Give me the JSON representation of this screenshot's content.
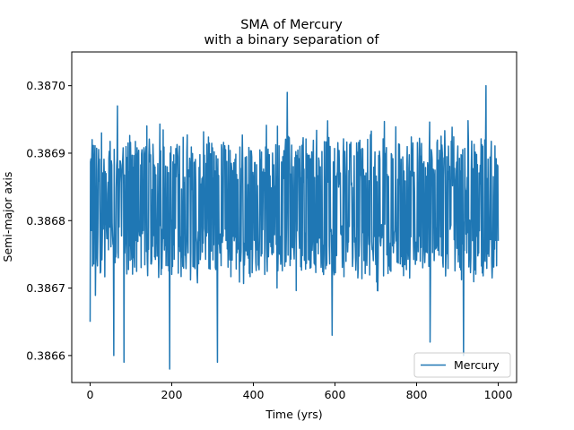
{
  "chart_data": {
    "type": "line",
    "title": "SMA of Mercury\nwith a binary separation of",
    "xlabel": "Time (yrs)",
    "ylabel": "Semi-major axis",
    "xlim": [
      -45,
      1045
    ],
    "ylim": [
      0.38656,
      0.38705
    ],
    "xticks": [
      0,
      200,
      400,
      600,
      800,
      1000
    ],
    "yticks": [
      0.3866,
      0.3867,
      0.3868,
      0.3869,
      0.387
    ],
    "ytick_labels": [
      "0.3866",
      "0.3867",
      "0.3868",
      "0.3869",
      "0.3870"
    ],
    "legend_position": "lower-right",
    "series": [
      {
        "name": "Mercury",
        "color": "#1f77b4",
        "x_start": 0,
        "x_end": 1000,
        "points": 1000,
        "seed": 42,
        "key_points": [
          [
            0,
            0.38665
          ],
          [
            5,
            0.38692
          ],
          [
            28,
            0.38693
          ],
          [
            58,
            0.3866
          ],
          [
            67,
            0.38697
          ],
          [
            83,
            0.38659
          ],
          [
            195,
            0.38658
          ],
          [
            312,
            0.38659
          ],
          [
            483,
            0.38699
          ],
          [
            593,
            0.38663
          ],
          [
            833,
            0.38662
          ],
          [
            915,
            0.3866
          ],
          [
            970,
            0.387
          ],
          [
            1000,
            0.38677
          ]
        ]
      }
    ]
  }
}
